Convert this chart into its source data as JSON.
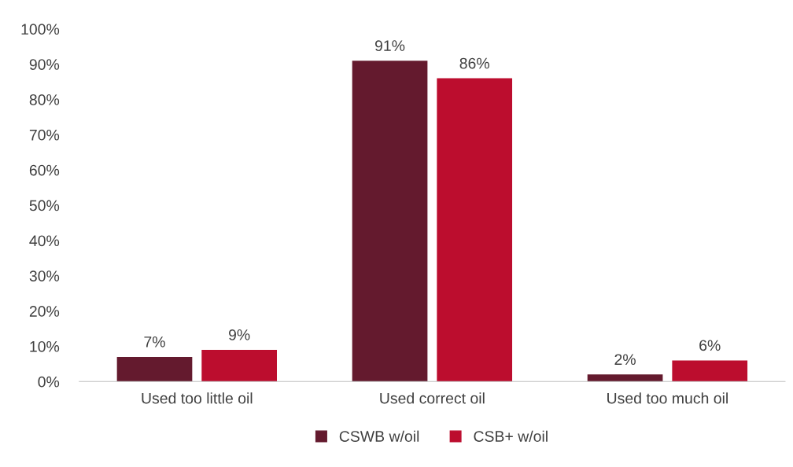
{
  "chart_data": {
    "type": "bar",
    "categories": [
      "Used too little oil",
      "Used correct oil",
      "Used too much oil"
    ],
    "series": [
      {
        "name": "CSWB w/oil",
        "color": "#641a2e",
        "values": [
          7,
          91,
          2
        ],
        "value_labels": [
          "7%",
          "91%",
          "2%"
        ]
      },
      {
        "name": "CSB+ w/oil",
        "color": "#bc0d2e",
        "values": [
          9,
          86,
          6
        ],
        "value_labels": [
          "9%",
          "86%",
          "6%"
        ]
      }
    ],
    "ylim": [
      0,
      100
    ],
    "yticks": [
      {
        "value": 0,
        "label": "0%"
      },
      {
        "value": 10,
        "label": "10%"
      },
      {
        "value": 20,
        "label": "20%"
      },
      {
        "value": 30,
        "label": "30%"
      },
      {
        "value": 40,
        "label": "40%"
      },
      {
        "value": 50,
        "label": "50%"
      },
      {
        "value": 60,
        "label": "60%"
      },
      {
        "value": 70,
        "label": "70%"
      },
      {
        "value": 80,
        "label": "80%"
      },
      {
        "value": 90,
        "label": "90%"
      },
      {
        "value": 100,
        "label": "100%"
      }
    ],
    "grid": false,
    "legend": "bottom"
  }
}
